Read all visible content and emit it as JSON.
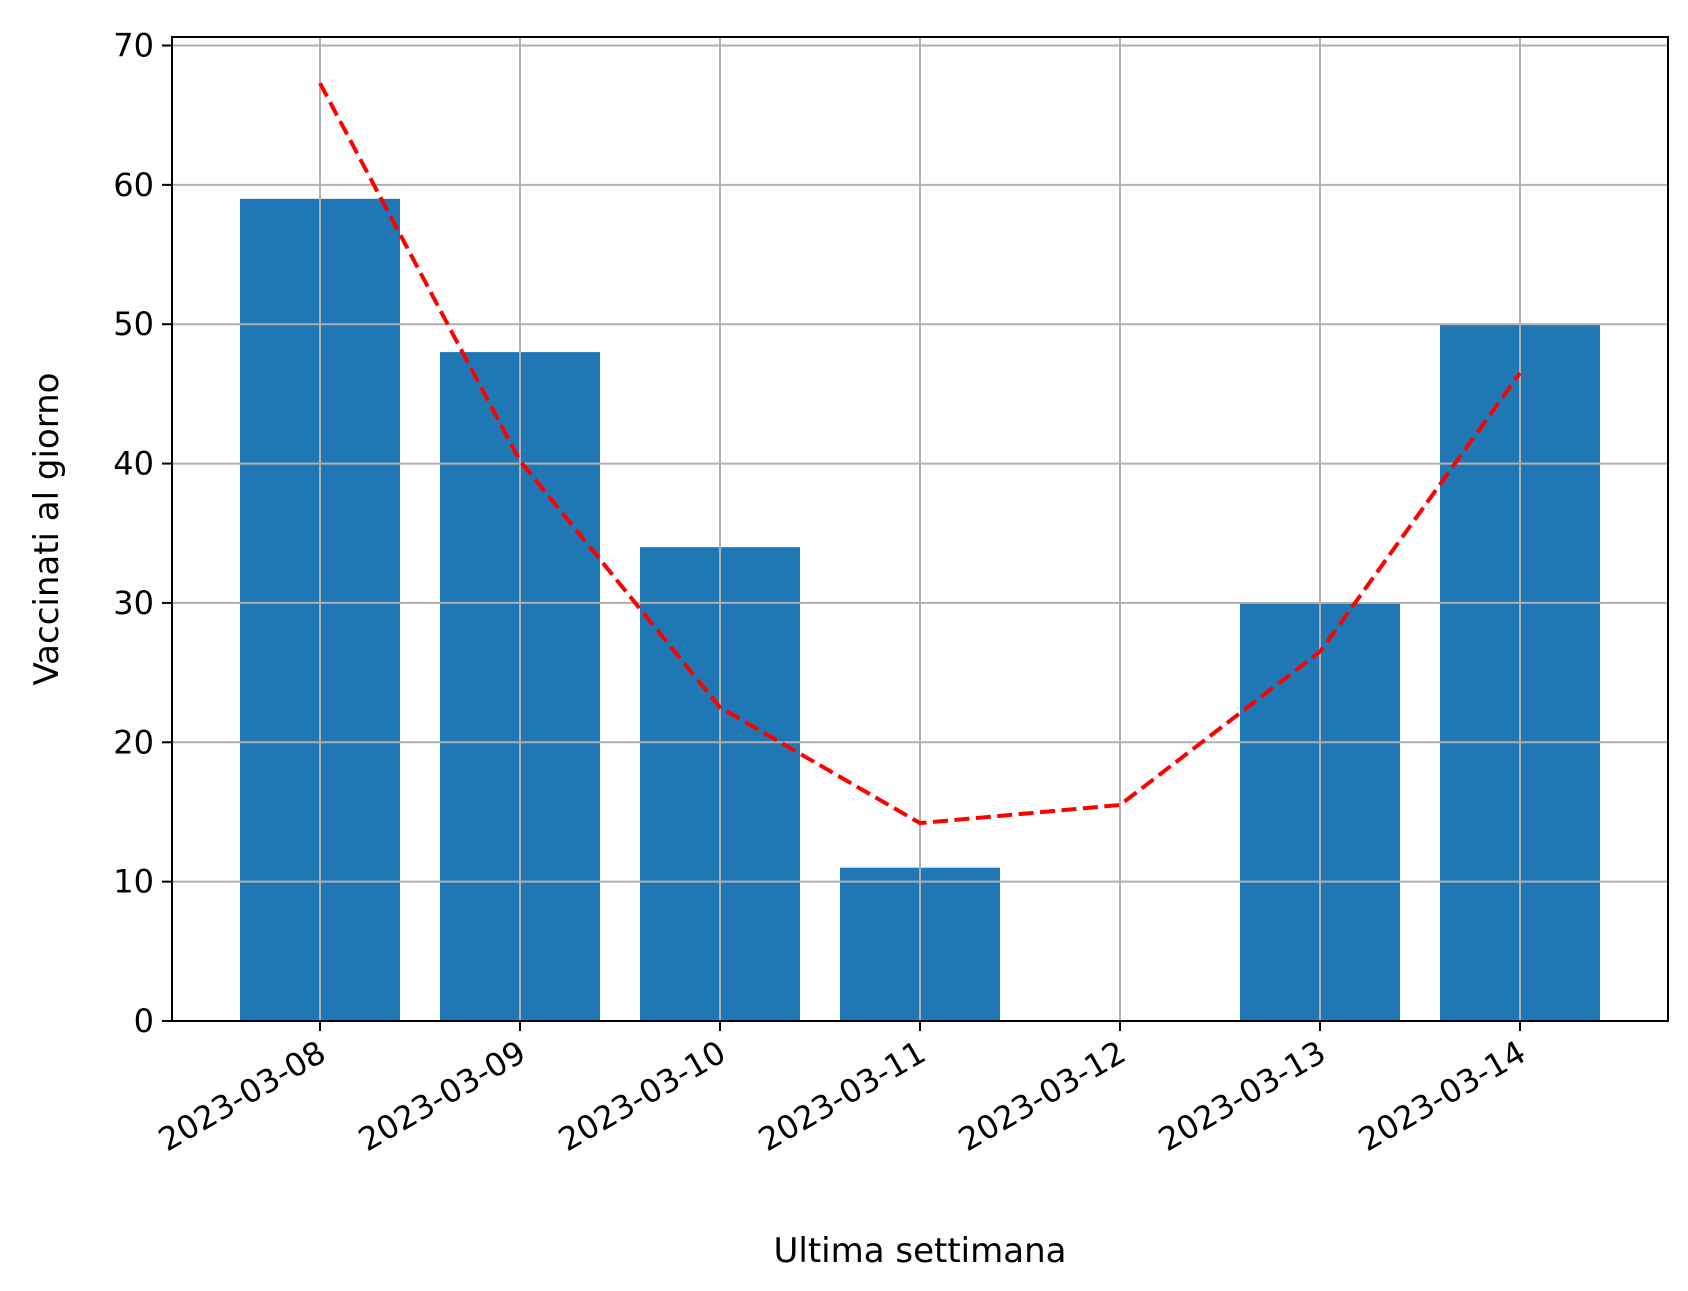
{
  "chart_data": {
    "type": "bar",
    "title": "",
    "xlabel": "Ultima settimana",
    "ylabel": "Vaccinati al giorno",
    "categories": [
      "2023-03-08",
      "2023-03-09",
      "2023-03-10",
      "2023-03-11",
      "2023-03-12",
      "2023-03-13",
      "2023-03-14"
    ],
    "series": [
      {
        "type": "bar",
        "values": [
          59,
          48,
          34,
          11,
          0,
          30,
          50
        ],
        "color": "#1f77b4"
      },
      {
        "type": "line",
        "style": "dashed",
        "values": [
          67.3,
          40.2,
          22.5,
          14.2,
          15.5,
          26.5,
          46.5
        ],
        "color": "#ff0000"
      }
    ],
    "ylim": [
      0,
      70
    ],
    "yticks": [
      0,
      10,
      20,
      30,
      40,
      50,
      60,
      70
    ],
    "grid": true,
    "legend": null
  }
}
